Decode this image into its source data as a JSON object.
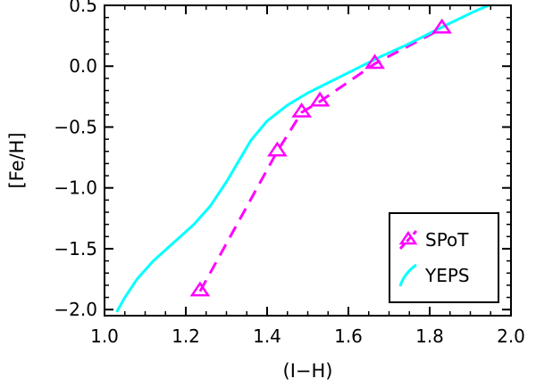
{
  "chart_data": {
    "type": "line",
    "title": "",
    "xlabel": "(I−H)",
    "ylabel": "[Fe/H]",
    "xlim": [
      1.0,
      2.0
    ],
    "ylim": [
      -2.05,
      0.5
    ],
    "x_ticks": [
      1.0,
      1.2,
      1.4,
      1.6,
      1.8,
      2.0
    ],
    "x_tick_labels": [
      "1.0",
      "1.2",
      "1.4",
      "1.6",
      "1.8",
      "2.0"
    ],
    "y_ticks": [
      0.5,
      0.0,
      -0.5,
      -1.0,
      -1.5,
      -2.0
    ],
    "y_tick_labels": [
      "0.5",
      "0.0",
      "−0.5",
      "−1.0",
      "−1.5",
      "−2.0"
    ],
    "legend_position": "bottom-right",
    "series": [
      {
        "name": "SPoT",
        "style": "dashed-with-triangle-markers",
        "color": "#ff00ff",
        "x": [
          1.235,
          1.425,
          1.485,
          1.53,
          1.665,
          1.83
        ],
        "y": [
          -1.85,
          -0.7,
          -0.38,
          -0.29,
          0.02,
          0.31
        ]
      },
      {
        "name": "YEPS",
        "style": "solid",
        "color": "#00ffff",
        "x": [
          1.03,
          1.05,
          1.08,
          1.12,
          1.17,
          1.22,
          1.26,
          1.3,
          1.33,
          1.36,
          1.4,
          1.45,
          1.5,
          1.56,
          1.62,
          1.68,
          1.74,
          1.8,
          1.86,
          1.91,
          1.945
        ],
        "y": [
          -2.02,
          -1.9,
          -1.75,
          -1.6,
          -1.45,
          -1.3,
          -1.15,
          -0.95,
          -0.78,
          -0.61,
          -0.45,
          -0.32,
          -0.22,
          -0.12,
          -0.02,
          0.08,
          0.17,
          0.27,
          0.37,
          0.45,
          0.5
        ]
      }
    ]
  }
}
